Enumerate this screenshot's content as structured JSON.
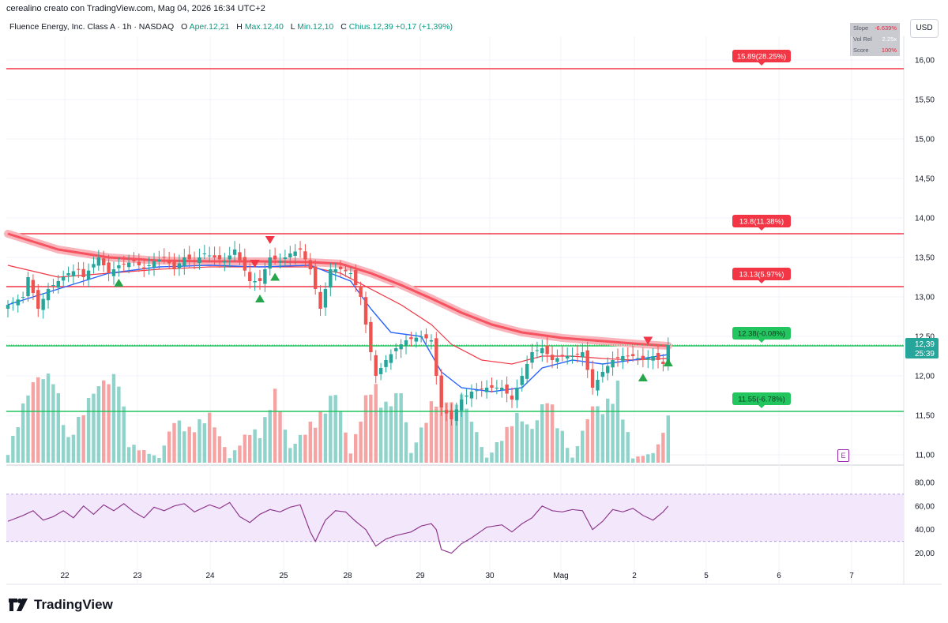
{
  "header": {
    "created_by": "cerealino creato con TradingView.com, Mag 04, 2026 16:34 UTC+2"
  },
  "legend": {
    "symbol": "Fluence Energy, Inc. Class A · 1h · NASDAQ",
    "open_label": "O",
    "open_value": "Aper.12,21",
    "high_label": "H",
    "high_value": "Max.12,40",
    "low_label": "L",
    "low_value": "Min.12,10",
    "close_label": "C",
    "close_value": "Chius.12,39",
    "change_value": "+0,17 (+1,39%)"
  },
  "currency_button": "USD",
  "stats_box": {
    "slope_label": "Slope",
    "slope_value": "-6.639%",
    "volrel_label": "Vol Rel",
    "volrel_value": "2.25x",
    "score_label": "Score",
    "score_value": "100%"
  },
  "brand": {
    "name": "TradingView"
  },
  "earnings_marker": "E",
  "colors": {
    "up": "#26a69a",
    "down": "#ef5350",
    "up_volume": "#8fd3cb",
    "down_volume": "#f5a3a3",
    "ma_fast": "#2962ff",
    "ma_slow": "#f23645",
    "ribbon": "#f7525f",
    "resistance": "#f23645",
    "support": "#22c55e",
    "rsi_line": "#8e3a8e",
    "rsi_band": "#f3e8fb"
  },
  "chart_data": {
    "type": "candlestick",
    "title": "Fluence Energy, Inc. Class A · 1h · NASDAQ",
    "price_axis_ticks": [
      "16,00",
      "15,50",
      "15,00",
      "14,50",
      "14,00",
      "13,50",
      "13,00",
      "12,50",
      "12,00",
      "11,50",
      "11,00"
    ],
    "price_ylim": [
      10.9,
      16.3
    ],
    "rsi_axis_ticks": [
      "80,00",
      "60,00",
      "40,00",
      "20,00"
    ],
    "rsi_ylim": [
      15,
      82
    ],
    "rsi_band": [
      30,
      70
    ],
    "x_tick_labels": [
      "22",
      "23",
      "24",
      "25",
      "28",
      "29",
      "30",
      "Mag",
      "2",
      "5",
      "6",
      "7"
    ],
    "last_price": {
      "value": "12,39",
      "countdown": "25:39",
      "price": 12.39
    },
    "levels": [
      {
        "label": "15.89(28.25%)",
        "price": 15.89,
        "kind": "resistance"
      },
      {
        "label": "13.8(11.38%)",
        "price": 13.8,
        "kind": "resistance"
      },
      {
        "label": "13.13(5.97%)",
        "price": 13.13,
        "kind": "resistance"
      },
      {
        "label": "12.38(-0.08%)",
        "price": 12.38,
        "kind": "support"
      },
      {
        "label": "11.55(-6.78%)",
        "price": 11.55,
        "kind": "support"
      }
    ],
    "close_anchors": [
      [
        0,
        12.9
      ],
      [
        3,
        13.0
      ],
      [
        4,
        13.25
      ],
      [
        6,
        12.85
      ],
      [
        8,
        13.1
      ],
      [
        10,
        13.2
      ],
      [
        12,
        13.3
      ],
      [
        14,
        13.35
      ],
      [
        15,
        13.25
      ],
      [
        18,
        13.5
      ],
      [
        20,
        13.3
      ],
      [
        22,
        13.4
      ],
      [
        25,
        13.45
      ],
      [
        27,
        13.35
      ],
      [
        29,
        13.45
      ],
      [
        31,
        13.5
      ],
      [
        33,
        13.35
      ],
      [
        35,
        13.5
      ],
      [
        37,
        13.45
      ],
      [
        39,
        13.55
      ],
      [
        41,
        13.5
      ],
      [
        43,
        13.45
      ],
      [
        45,
        13.6
      ],
      [
        48,
        13.2
      ],
      [
        50,
        13.2
      ],
      [
        52,
        13.5
      ],
      [
        54,
        13.45
      ],
      [
        56,
        13.55
      ],
      [
        58,
        13.6
      ],
      [
        60,
        13.35
      ],
      [
        62,
        12.85
      ],
      [
        64,
        13.35
      ],
      [
        66,
        13.35
      ],
      [
        68,
        13.3
      ],
      [
        70,
        13.0
      ],
      [
        72,
        12.3
      ],
      [
        73,
        12.0
      ],
      [
        75,
        12.2
      ],
      [
        77,
        12.35
      ],
      [
        79,
        12.45
      ],
      [
        82,
        12.5
      ],
      [
        84,
        12.45
      ],
      [
        85,
        12.0
      ],
      [
        86,
        11.6
      ],
      [
        88,
        11.45
      ],
      [
        90,
        11.7
      ],
      [
        92,
        11.8
      ],
      [
        95,
        11.85
      ],
      [
        98,
        11.85
      ],
      [
        100,
        11.7
      ],
      [
        102,
        12.0
      ],
      [
        104,
        12.3
      ],
      [
        106,
        12.35
      ],
      [
        108,
        12.2
      ],
      [
        110,
        12.25
      ],
      [
        112,
        12.25
      ],
      [
        114,
        12.3
      ],
      [
        116,
        11.85
      ],
      [
        118,
        12.05
      ],
      [
        120,
        12.2
      ],
      [
        122,
        12.25
      ],
      [
        124,
        12.25
      ],
      [
        126,
        12.2
      ],
      [
        128,
        12.25
      ],
      [
        130,
        12.15
      ],
      [
        131,
        12.39
      ]
    ],
    "ema_fast_anchors": [
      [
        0,
        12.9
      ],
      [
        10,
        13.1
      ],
      [
        20,
        13.3
      ],
      [
        30,
        13.38
      ],
      [
        40,
        13.4
      ],
      [
        50,
        13.38
      ],
      [
        60,
        13.4
      ],
      [
        64,
        13.3
      ],
      [
        68,
        13.2
      ],
      [
        72,
        12.85
      ],
      [
        76,
        12.55
      ],
      [
        82,
        12.5
      ],
      [
        86,
        12.05
      ],
      [
        90,
        11.85
      ],
      [
        96,
        11.8
      ],
      [
        102,
        11.85
      ],
      [
        106,
        12.1
      ],
      [
        112,
        12.2
      ],
      [
        118,
        12.15
      ],
      [
        124,
        12.2
      ],
      [
        131,
        12.27
      ]
    ],
    "ema_slow_anchors": [
      [
        0,
        13.4
      ],
      [
        10,
        13.25
      ],
      [
        20,
        13.3
      ],
      [
        30,
        13.35
      ],
      [
        40,
        13.38
      ],
      [
        50,
        13.38
      ],
      [
        60,
        13.38
      ],
      [
        66,
        13.3
      ],
      [
        72,
        13.1
      ],
      [
        78,
        12.9
      ],
      [
        84,
        12.65
      ],
      [
        88,
        12.4
      ],
      [
        94,
        12.2
      ],
      [
        100,
        12.15
      ],
      [
        106,
        12.25
      ],
      [
        112,
        12.25
      ],
      [
        118,
        12.22
      ],
      [
        124,
        12.2
      ],
      [
        131,
        12.22
      ]
    ],
    "ribbon_anchors": [
      [
        0,
        13.8
      ],
      [
        10,
        13.6
      ],
      [
        20,
        13.5
      ],
      [
        30,
        13.46
      ],
      [
        40,
        13.45
      ],
      [
        50,
        13.45
      ],
      [
        60,
        13.44
      ],
      [
        66,
        13.42
      ],
      [
        72,
        13.3
      ],
      [
        78,
        13.15
      ],
      [
        84,
        12.98
      ],
      [
        90,
        12.8
      ],
      [
        96,
        12.65
      ],
      [
        102,
        12.55
      ],
      [
        110,
        12.48
      ],
      [
        118,
        12.44
      ],
      [
        126,
        12.4
      ],
      [
        131,
        12.38
      ]
    ],
    "volume_anchors": [
      [
        0,
        0.1
      ],
      [
        4,
        0.75
      ],
      [
        6,
        0.9
      ],
      [
        9,
        0.9
      ],
      [
        12,
        0.25
      ],
      [
        17,
        0.75
      ],
      [
        19,
        0.85
      ],
      [
        22,
        0.9
      ],
      [
        24,
        0.2
      ],
      [
        30,
        0.05
      ],
      [
        33,
        0.45
      ],
      [
        36,
        0.35
      ],
      [
        40,
        0.5
      ],
      [
        44,
        0.05
      ],
      [
        48,
        0.35
      ],
      [
        50,
        0.3
      ],
      [
        53,
        0.75
      ],
      [
        56,
        0.15
      ],
      [
        60,
        0.4
      ],
      [
        62,
        0.5
      ],
      [
        65,
        0.75
      ],
      [
        68,
        0.1
      ],
      [
        72,
        0.85
      ],
      [
        75,
        0.6
      ],
      [
        78,
        0.75
      ],
      [
        80,
        0.1
      ],
      [
        86,
        0.85
      ],
      [
        88,
        0.6
      ],
      [
        90,
        0.7
      ],
      [
        95,
        0.05
      ],
      [
        101,
        0.5
      ],
      [
        104,
        0.35
      ],
      [
        107,
        0.7
      ],
      [
        112,
        0.05
      ],
      [
        116,
        0.6
      ],
      [
        118,
        0.55
      ],
      [
        121,
        0.8
      ],
      [
        124,
        0.05
      ],
      [
        128,
        0.1
      ],
      [
        130,
        0.3
      ],
      [
        131,
        0.55
      ]
    ],
    "rsi_anchors": [
      [
        0,
        47
      ],
      [
        3,
        52
      ],
      [
        5,
        56
      ],
      [
        7,
        48
      ],
      [
        9,
        51
      ],
      [
        11,
        56
      ],
      [
        13,
        50
      ],
      [
        15,
        60
      ],
      [
        17,
        53
      ],
      [
        19,
        61
      ],
      [
        21,
        56
      ],
      [
        23,
        62
      ],
      [
        25,
        55
      ],
      [
        27,
        50
      ],
      [
        29,
        59
      ],
      [
        31,
        56
      ],
      [
        33,
        60
      ],
      [
        35,
        62
      ],
      [
        37,
        55
      ],
      [
        40,
        61
      ],
      [
        42,
        58
      ],
      [
        44,
        63
      ],
      [
        46,
        51
      ],
      [
        48,
        46
      ],
      [
        50,
        53
      ],
      [
        52,
        57
      ],
      [
        54,
        55
      ],
      [
        56,
        59
      ],
      [
        58,
        61
      ],
      [
        60,
        38
      ],
      [
        61,
        30
      ],
      [
        63,
        48
      ],
      [
        65,
        56
      ],
      [
        67,
        55
      ],
      [
        69,
        47
      ],
      [
        71,
        40
      ],
      [
        73,
        26
      ],
      [
        75,
        32
      ],
      [
        77,
        35
      ],
      [
        80,
        38
      ],
      [
        82,
        43
      ],
      [
        84,
        45
      ],
      [
        85,
        40
      ],
      [
        86,
        23
      ],
      [
        88,
        20
      ],
      [
        90,
        28
      ],
      [
        92,
        33
      ],
      [
        95,
        42
      ],
      [
        98,
        44
      ],
      [
        100,
        38
      ],
      [
        102,
        45
      ],
      [
        104,
        50
      ],
      [
        106,
        60
      ],
      [
        108,
        56
      ],
      [
        110,
        55
      ],
      [
        112,
        57
      ],
      [
        114,
        56
      ],
      [
        116,
        40
      ],
      [
        118,
        47
      ],
      [
        120,
        57
      ],
      [
        122,
        55
      ],
      [
        124,
        58
      ],
      [
        126,
        52
      ],
      [
        128,
        48
      ],
      [
        130,
        55
      ],
      [
        131,
        60
      ]
    ],
    "markers": [
      {
        "i": 22,
        "type": "up"
      },
      {
        "i": 49,
        "type": "down"
      },
      {
        "i": 50,
        "type": "up"
      },
      {
        "i": 52,
        "type": "down"
      },
      {
        "i": 53,
        "type": "up"
      },
      {
        "i": 127,
        "type": "down"
      },
      {
        "i": 126,
        "type": "up"
      },
      {
        "i": 131,
        "type": "up"
      }
    ],
    "n_bars": 132,
    "grid": true
  }
}
